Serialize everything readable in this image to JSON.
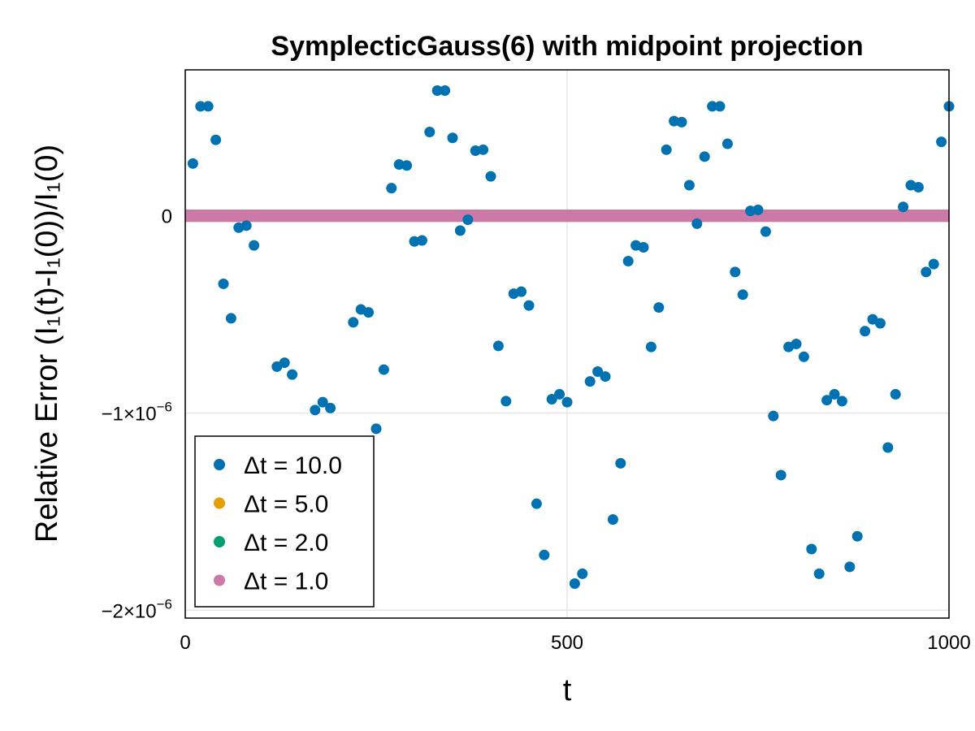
{
  "chart_data": {
    "type": "scatter",
    "title": "SymplecticGauss(6) with midpoint projection",
    "xlabel": "t",
    "ylabel": "Relative Error (I₁(t)-I₁(0))/I₁(0)",
    "xlim": [
      0,
      1000
    ],
    "ylim": [
      -2.04e-06,
      7.4e-07
    ],
    "x_ticks": [
      0,
      500,
      1000
    ],
    "x_tick_labels": [
      "0",
      "500",
      "1000"
    ],
    "y_ticks": [
      0,
      -1e-06,
      -2e-06
    ],
    "y_tick_labels": [
      {
        "mant": "0",
        "exp": ""
      },
      {
        "mant": "−1×10",
        "exp": "−6"
      },
      {
        "mant": "−2×10",
        "exp": "−6"
      }
    ],
    "grid": true,
    "legend_position": "bottom-left",
    "series": [
      {
        "name": "Δt = 10.0",
        "color": "#0072b2",
        "style": "points",
        "x": [
          10,
          20,
          30,
          40,
          50,
          60,
          70,
          80,
          90,
          120,
          130,
          140,
          170,
          180,
          190,
          220,
          230,
          240,
          250,
          260,
          270,
          280,
          290,
          300,
          310,
          320,
          330,
          340,
          350,
          360,
          370,
          380,
          390,
          400,
          410,
          420,
          430,
          440,
          450,
          460,
          470,
          480,
          490,
          500,
          510,
          520,
          530,
          540,
          550,
          560,
          570,
          580,
          590,
          600,
          610,
          620,
          630,
          640,
          650,
          660,
          670,
          680,
          690,
          700,
          710,
          720,
          730,
          740,
          750,
          760,
          770,
          780,
          790,
          800,
          810,
          820,
          830,
          840,
          850,
          860,
          870,
          880,
          890,
          900,
          910,
          920,
          930,
          940,
          950,
          960,
          970,
          980,
          990,
          1000
        ],
        "y": [
          2.65e-07,
          5.55e-07,
          5.55e-07,
          3.85e-07,
          -3.45e-07,
          -5.2e-07,
          -6e-08,
          -5e-08,
          -1.5e-07,
          -7.65e-07,
          -7.45e-07,
          -8.05e-07,
          -9.85e-07,
          -9.45e-07,
          -9.75e-07,
          -5.4e-07,
          -4.75e-07,
          -4.9e-07,
          -1.08e-06,
          -7.8e-07,
          1.4e-07,
          2.6e-07,
          2.55e-07,
          -1.3e-07,
          -1.25e-07,
          4.25e-07,
          6.35e-07,
          6.35e-07,
          3.95e-07,
          -7.5e-08,
          -2e-08,
          3.3e-07,
          3.35e-07,
          2e-07,
          -6.6e-07,
          -9.4e-07,
          -3.95e-07,
          -3.85e-07,
          -4.55e-07,
          -1.46e-06,
          -1.72e-06,
          -9.3e-07,
          -9.05e-07,
          -9.45e-07,
          -1.865e-06,
          -1.815e-06,
          -8.4e-07,
          -7.9e-07,
          -8.15e-07,
          -1.54e-06,
          -1.255e-06,
          -2.3e-07,
          -1.5e-07,
          -1.6e-07,
          -6.65e-07,
          -4.65e-07,
          3.35e-07,
          4.8e-07,
          4.75e-07,
          1.55e-07,
          -4e-08,
          3e-07,
          5.55e-07,
          5.55e-07,
          3.65e-07,
          -2.85e-07,
          -4e-07,
          2.5e-08,
          3e-08,
          -8e-08,
          -1.015e-06,
          -1.315e-06,
          -6.65e-07,
          -6.5e-07,
          -7.15e-07,
          -1.69e-06,
          -1.815e-06,
          -9.35e-07,
          -9.05e-07,
          -9.4e-07,
          -1.78e-06,
          -1.625e-06,
          -5.85e-07,
          -5.25e-07,
          -5.45e-07,
          -1.175e-06,
          -9.05e-07,
          4.5e-08,
          1.55e-07,
          1.45e-07,
          -2.85e-07,
          -2.45e-07,
          3.75e-07,
          5.55e-07
        ]
      },
      {
        "name": "Δt = 5.0",
        "color": "#e69f00",
        "style": "band",
        "x": [
          0,
          1000
        ],
        "y": [
          0,
          0
        ]
      },
      {
        "name": "Δt = 2.0",
        "color": "#009e73",
        "style": "band",
        "x": [
          0,
          1000
        ],
        "y": [
          0,
          0
        ]
      },
      {
        "name": "Δt = 1.0",
        "color": "#cc79a7",
        "style": "band",
        "x": [
          0,
          1000
        ],
        "y": [
          0,
          0
        ]
      }
    ]
  }
}
